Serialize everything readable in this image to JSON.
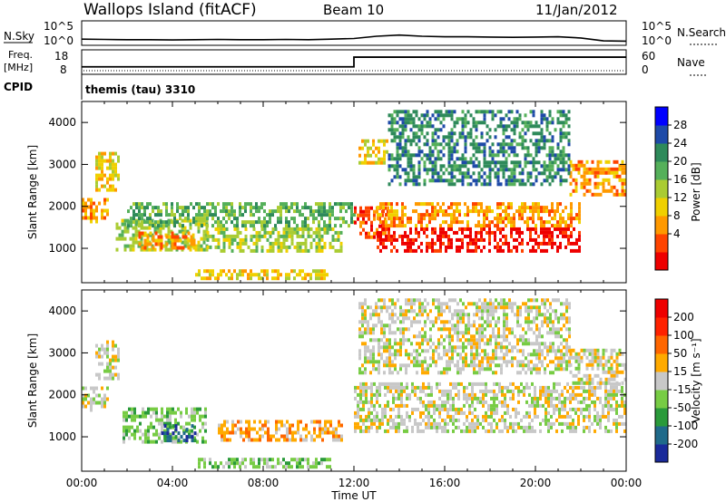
{
  "header": {
    "station": "Wallops Island (fitACF)",
    "beam": "Beam 10",
    "date": "11/Jan/2012"
  },
  "top_panels": {
    "nsky_label": "N.Sky",
    "nsearch_label": "N.Search",
    "nsky_ticks": [
      "10^5",
      "10^0"
    ],
    "nsearch_ticks": [
      "10^5",
      "10^0"
    ],
    "freq_label_1": "Freq.",
    "freq_label_2": "[MHz]",
    "freq_ticks": [
      "18",
      "8"
    ],
    "nave_label": "Nave",
    "nave_ticks": [
      "60",
      "0"
    ],
    "cpid_label": "CPID",
    "cpid_value": "themis (tau) 3310"
  },
  "x_axis": {
    "label": "Time UT",
    "ticks": [
      "00:00",
      "04:00",
      "08:00",
      "12:00",
      "16:00",
      "20:00",
      "00:00"
    ]
  },
  "power_panel": {
    "ylabel": "Slant Range [km]",
    "yticks": [
      "4000",
      "3000",
      "2000",
      "1000"
    ],
    "colorbar_label": "Power [dB]",
    "colorbar_ticks": [
      "28",
      "24",
      "20",
      "16",
      "12",
      "8",
      "4"
    ],
    "colors": [
      "#0000ff",
      "#1e4aa8",
      "#2e8a5a",
      "#55b05a",
      "#aacc33",
      "#f0d000",
      "#ff9900",
      "#ff4400",
      "#ee0000"
    ]
  },
  "velocity_panel": {
    "ylabel": "Slant Range [km]",
    "yticks": [
      "4000",
      "3000",
      "2000",
      "1000"
    ],
    "colorbar_label": "Velocity [m s⁻¹]",
    "colorbar_ticks": [
      "200",
      "100",
      "50",
      "15",
      "-15",
      "-50",
      "-100",
      "-200"
    ],
    "colors": [
      "#1a2a9a",
      "#206a8a",
      "#2a9a3a",
      "#77cc44",
      "#c8c8c8",
      "#ffaa00",
      "#ff6600",
      "#ff2200",
      "#ee0000"
    ]
  },
  "chart_data": {
    "type": "heatmap",
    "x_range_hours": [
      0,
      24
    ],
    "y_range_km": [
      180,
      4500
    ],
    "nsky": {
      "start_hour": 0,
      "step_hours": 1,
      "values": [
        1.2,
        1.1,
        1.0,
        1.0,
        0.9,
        1.0,
        1.1,
        1.0,
        1.0,
        1.1,
        1.0,
        1.2,
        1.4,
        2.2,
        2.6,
        2.2,
        2.0,
        2.0,
        1.9,
        1.8,
        1.9,
        2.0,
        1.6,
        0.6,
        0.5
      ]
    },
    "freq": {
      "steps": [
        {
          "from_hour": 0,
          "to_hour": 12,
          "mhz": 10.5
        },
        {
          "from_hour": 12,
          "to_hour": 24,
          "mhz": 15.6
        }
      ]
    },
    "power_regions": [
      {
        "t0": 0.0,
        "t1": 1.2,
        "r0": 1600,
        "r1": 2200,
        "level": 6
      },
      {
        "t0": 0.6,
        "t1": 1.6,
        "r0": 2400,
        "r1": 3300,
        "level": 5
      },
      {
        "t0": 1.5,
        "t1": 5.5,
        "r0": 1000,
        "r1": 1700,
        "level": 4
      },
      {
        "t0": 2.5,
        "t1": 5.0,
        "r0": 1000,
        "r1": 1400,
        "level": 6
      },
      {
        "t0": 5.5,
        "t1": 11.5,
        "r0": 900,
        "r1": 1500,
        "level": 4
      },
      {
        "t0": 5.0,
        "t1": 11.0,
        "r0": 250,
        "r1": 500,
        "level": 5
      },
      {
        "t0": 2.0,
        "t1": 12.0,
        "r0": 1500,
        "r1": 2100,
        "level": 3
      },
      {
        "t0": 12.0,
        "t1": 13.5,
        "r0": 1300,
        "r1": 2000,
        "level": 7
      },
      {
        "t0": 13.0,
        "t1": 22.0,
        "r0": 900,
        "r1": 1500,
        "level": 8
      },
      {
        "t0": 13.0,
        "t1": 22.0,
        "r0": 1500,
        "r1": 2100,
        "level": 6
      },
      {
        "t0": 21.5,
        "t1": 24.0,
        "r0": 2300,
        "r1": 3100,
        "level": 6
      },
      {
        "t0": 12.2,
        "t1": 13.5,
        "r0": 3000,
        "r1": 3600,
        "level": 5
      },
      {
        "t0": 13.5,
        "t1": 21.5,
        "r0": 2500,
        "r1": 4300,
        "level": 2
      }
    ],
    "velocity_regions": [
      {
        "t0": 0.0,
        "t1": 1.2,
        "r0": 1600,
        "r1": 2200,
        "level": 4
      },
      {
        "t0": 0.6,
        "t1": 1.6,
        "r0": 2400,
        "r1": 3300,
        "level": 4
      },
      {
        "t0": 1.8,
        "t1": 5.5,
        "r0": 900,
        "r1": 1700,
        "level": 3
      },
      {
        "t0": 3.5,
        "t1": 5.0,
        "r0": 900,
        "r1": 1300,
        "level": 1
      },
      {
        "t0": 6.0,
        "t1": 11.5,
        "r0": 900,
        "r1": 1400,
        "level": 5
      },
      {
        "t0": 5.0,
        "t1": 11.0,
        "r0": 250,
        "r1": 500,
        "level": 3
      },
      {
        "t0": 12.0,
        "t1": 24.0,
        "r0": 1100,
        "r1": 2300,
        "level": 4
      },
      {
        "t0": 21.5,
        "t1": 24.0,
        "r0": 2300,
        "r1": 3100,
        "level": 4
      },
      {
        "t0": 12.2,
        "t1": 21.5,
        "r0": 2500,
        "r1": 4300,
        "level": 4
      }
    ]
  }
}
